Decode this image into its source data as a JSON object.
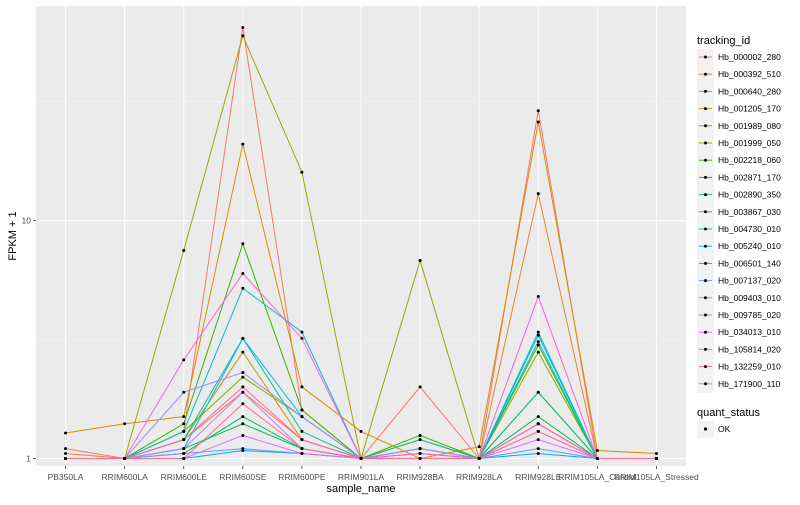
{
  "chart_data": {
    "type": "line",
    "xlabel": "sample_name",
    "ylabel": "FPKM + 1",
    "y_scale": "log",
    "ylim": [
      0.93,
      80
    ],
    "grid": true,
    "legend_placement": "right",
    "y_ticks": [
      {
        "value": 1,
        "label": "1"
      },
      {
        "value": 10,
        "label": "10"
      }
    ],
    "categories": [
      "PB350LA",
      "RRIM600LA",
      "RRIM600LE",
      "RRIM600SE",
      "RRIM600PE",
      "RRIM901LA",
      "RRIM928BA",
      "RRIM928LA",
      "RRIM928LE",
      "RRIM105LA_Control",
      "RRIM105LA_Stressed"
    ],
    "legend_title": "tracking_id",
    "series": [
      {
        "name": "Hb_000002_280",
        "color": "#F8766D",
        "values": [
          1.1,
          1.0,
          1.3,
          65,
          1.6,
          1.0,
          2.0,
          1.0,
          29,
          1.0,
          1.0
        ]
      },
      {
        "name": "Hb_000392_510",
        "color": "#EA8331",
        "values": [
          1.05,
          1.0,
          1.2,
          1.9,
          1.2,
          1.0,
          1.2,
          1.0,
          13,
          1.0,
          1.0
        ]
      },
      {
        "name": "Hb_000640_280",
        "color": "#D89000",
        "values": [
          1.28,
          1.4,
          1.5,
          21,
          2.0,
          1.3,
          1.0,
          1.12,
          26,
          1.08,
          1.05
        ]
      },
      {
        "name": "Hb_001205_170",
        "color": "#C09B00",
        "values": [
          1.0,
          1.0,
          1.2,
          2.8,
          1.2,
          1.0,
          1.1,
          1.0,
          1.4,
          1.0,
          1.0
        ]
      },
      {
        "name": "Hb_001989_080",
        "color": "#A3A500",
        "values": [
          1.0,
          1.0,
          7.5,
          60,
          16,
          1.0,
          6.8,
          1.0,
          1.9,
          1.0,
          1.0
        ]
      },
      {
        "name": "Hb_001999_050",
        "color": "#7CAE00",
        "values": [
          1.0,
          1.0,
          1.3,
          2.2,
          1.5,
          1.0,
          1.0,
          1.0,
          2.8,
          1.0,
          1.0
        ]
      },
      {
        "name": "Hb_002218_060",
        "color": "#39B600",
        "values": [
          1.0,
          1.0,
          1.4,
          8.0,
          1.6,
          1.0,
          1.25,
          1.0,
          3.0,
          1.0,
          1.0
        ]
      },
      {
        "name": "Hb_002871_170",
        "color": "#00BB4E",
        "values": [
          1.0,
          1.0,
          1.1,
          1.4,
          1.1,
          1.0,
          1.1,
          1.0,
          1.5,
          1.0,
          1.0
        ]
      },
      {
        "name": "Hb_002890_350",
        "color": "#00BF7D",
        "values": [
          1.0,
          1.0,
          1.05,
          1.5,
          1.1,
          1.0,
          1.2,
          1.0,
          1.9,
          1.0,
          1.0
        ]
      },
      {
        "name": "Hb_003867_030",
        "color": "#00C1A3",
        "values": [
          1.0,
          1.0,
          1.2,
          3.2,
          1.3,
          1.0,
          1.0,
          1.0,
          3.3,
          1.0,
          1.0
        ]
      },
      {
        "name": "Hb_004730_010",
        "color": "#00BFC4",
        "values": [
          1.0,
          1.0,
          1.3,
          5.2,
          3.4,
          1.0,
          1.0,
          1.0,
          3.1,
          1.0,
          1.0
        ]
      },
      {
        "name": "Hb_005240_010",
        "color": "#00B8E7",
        "values": [
          1.0,
          1.0,
          1.1,
          3.2,
          1.5,
          1.0,
          1.1,
          1.0,
          3.4,
          1.0,
          1.0
        ]
      },
      {
        "name": "Hb_006501_140",
        "color": "#00A9FF",
        "values": [
          1.0,
          1.0,
          1.0,
          1.08,
          1.05,
          1.0,
          1.0,
          1.0,
          1.05,
          1.0,
          1.0
        ]
      },
      {
        "name": "Hb_007137_020",
        "color": "#619CFF",
        "values": [
          1.0,
          1.0,
          1.05,
          1.1,
          1.05,
          1.0,
          1.0,
          1.0,
          1.1,
          1.0,
          1.0
        ]
      },
      {
        "name": "Hb_009403_010",
        "color": "#9F8CFF",
        "values": [
          1.0,
          1.0,
          1.9,
          2.3,
          1.5,
          1.0,
          1.1,
          1.0,
          1.4,
          1.0,
          1.0
        ]
      },
      {
        "name": "Hb_009785_020",
        "color": "#C77CFF",
        "values": [
          1.0,
          1.0,
          1.1,
          1.9,
          1.1,
          1.0,
          1.05,
          1.0,
          1.3,
          1.0,
          1.0
        ]
      },
      {
        "name": "Hb_034013_010",
        "color": "#E76BF3",
        "values": [
          1.0,
          1.0,
          1.0,
          1.25,
          1.05,
          1.0,
          1.05,
          1.0,
          1.2,
          1.0,
          1.0
        ]
      },
      {
        "name": "Hb_105814_020",
        "color": "#FA62DB",
        "values": [
          1.0,
          1.0,
          2.6,
          6.0,
          3.2,
          1.0,
          1.0,
          1.0,
          4.8,
          1.0,
          1.0
        ]
      },
      {
        "name": "Hb_132259_010",
        "color": "#FF62BC",
        "values": [
          1.0,
          1.0,
          1.2,
          2.0,
          1.2,
          1.0,
          1.05,
          1.0,
          1.4,
          1.0,
          1.0
        ]
      },
      {
        "name": "Hb_171900_110",
        "color": "#FF6C91",
        "values": [
          1.0,
          1.0,
          1.0,
          1.7,
          1.1,
          1.0,
          1.0,
          1.0,
          1.3,
          1.0,
          1.0
        ]
      }
    ],
    "status_legend": {
      "title": "quant_status",
      "entries": [
        {
          "label": "OK",
          "color": "#000000"
        }
      ]
    }
  }
}
